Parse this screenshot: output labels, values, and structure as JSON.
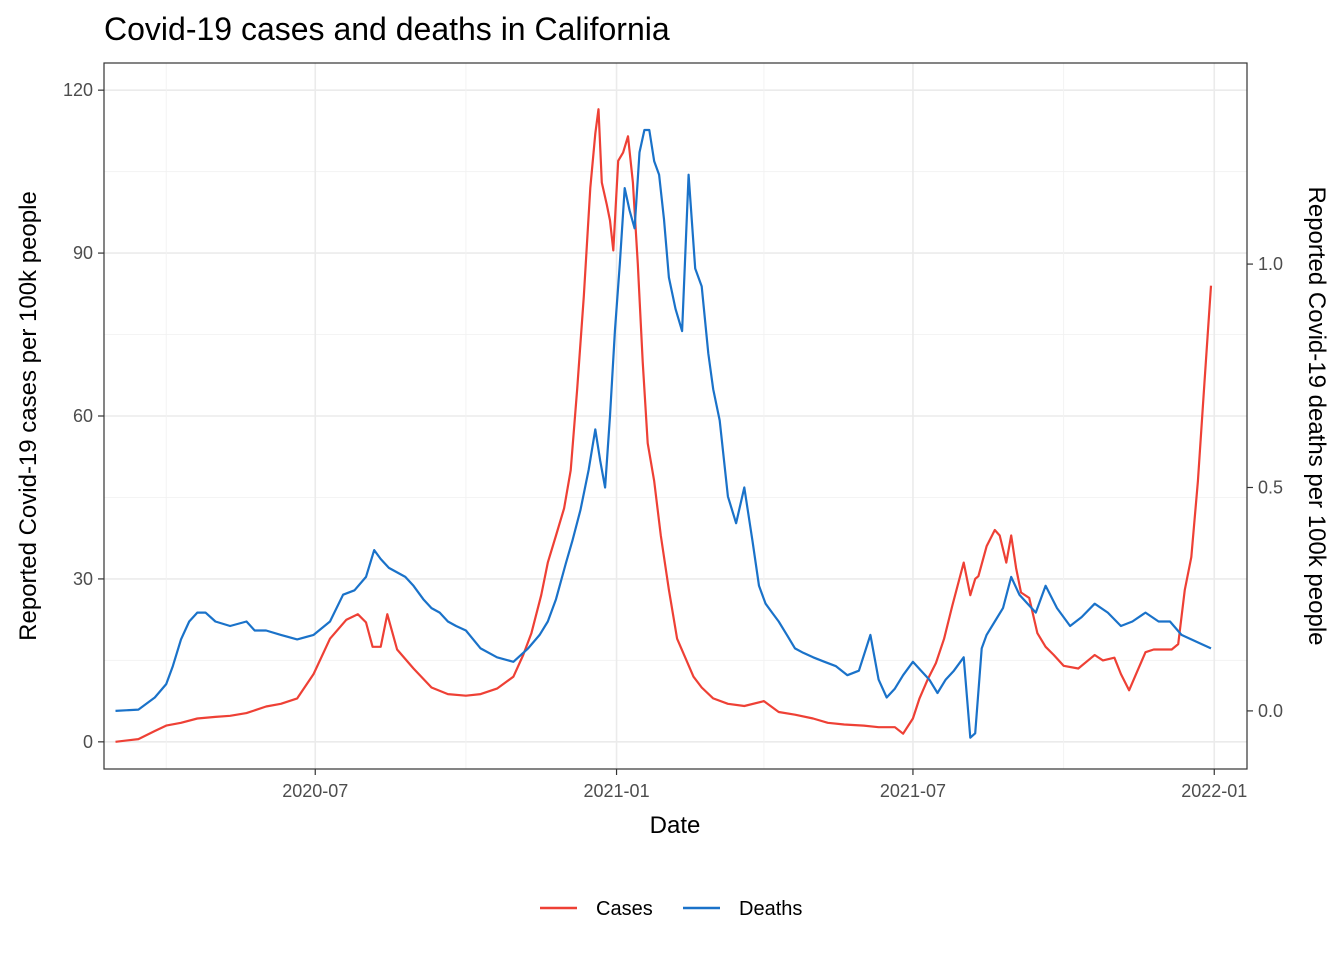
{
  "chart_data": {
    "type": "line",
    "title": "Covid-19 cases and deaths in California",
    "xlabel": "Date",
    "ylabel": "Reported Covid-19 cases per 100k people",
    "y2label": "Reported Covid-19 deaths per 100k people",
    "x_ticks": [
      "2020-07",
      "2021-01",
      "2021-07",
      "2022-01"
    ],
    "y_ticks": [
      0,
      30,
      60,
      90,
      120
    ],
    "y2_ticks": [
      "0.0",
      "0.5",
      "1.0"
    ],
    "xlim": [
      "2020-02-23",
      "2022-01-21"
    ],
    "ylim": [
      -5,
      125
    ],
    "y2lim": [
      -0.13,
      1.45
    ],
    "grid": true,
    "legend_position": "bottom",
    "series": [
      {
        "name": "Cases",
        "axis": "left",
        "color": "#ee4035",
        "x": [
          "2020-03-01",
          "2020-03-15",
          "2020-03-25",
          "2020-04-01",
          "2020-04-10",
          "2020-04-20",
          "2020-05-01",
          "2020-05-10",
          "2020-05-20",
          "2020-06-01",
          "2020-06-10",
          "2020-06-20",
          "2020-06-30",
          "2020-07-10",
          "2020-07-20",
          "2020-07-27",
          "2020-08-01",
          "2020-08-05",
          "2020-08-10",
          "2020-08-14",
          "2020-08-20",
          "2020-08-30",
          "2020-09-10",
          "2020-09-20",
          "2020-10-01",
          "2020-10-10",
          "2020-10-20",
          "2020-10-30",
          "2020-11-05",
          "2020-11-10",
          "2020-11-16",
          "2020-11-20",
          "2020-11-25",
          "2020-11-30",
          "2020-12-04",
          "2020-12-08",
          "2020-12-12",
          "2020-12-16",
          "2020-12-19",
          "2020-12-21",
          "2020-12-23",
          "2020-12-26",
          "2020-12-28",
          "2020-12-30",
          "2021-01-02",
          "2021-01-05",
          "2021-01-08",
          "2021-01-11",
          "2021-01-14",
          "2021-01-17",
          "2021-01-20",
          "2021-01-24",
          "2021-01-28",
          "2021-02-02",
          "2021-02-07",
          "2021-02-12",
          "2021-02-17",
          "2021-02-22",
          "2021-03-01",
          "2021-03-10",
          "2021-03-20",
          "2021-04-01",
          "2021-04-10",
          "2021-04-20",
          "2021-05-01",
          "2021-05-10",
          "2021-05-20",
          "2021-06-01",
          "2021-06-10",
          "2021-06-20",
          "2021-06-25",
          "2021-07-01",
          "2021-07-05",
          "2021-07-10",
          "2021-07-15",
          "2021-07-20",
          "2021-07-25",
          "2021-08-01",
          "2021-08-05",
          "2021-08-08",
          "2021-08-10",
          "2021-08-15",
          "2021-08-20",
          "2021-08-23",
          "2021-08-27",
          "2021-08-30",
          "2021-09-02",
          "2021-09-05",
          "2021-09-10",
          "2021-09-15",
          "2021-09-20",
          "2021-09-25",
          "2021-10-01",
          "2021-10-10",
          "2021-10-18",
          "2021-10-20",
          "2021-10-25",
          "2021-11-01",
          "2021-11-05",
          "2021-11-10",
          "2021-11-15",
          "2021-11-20",
          "2021-11-25",
          "2021-12-01",
          "2021-12-06",
          "2021-12-10",
          "2021-12-14",
          "2021-12-18",
          "2021-12-22",
          "2021-12-26",
          "2021-12-30"
        ],
        "values": [
          0,
          0.5,
          2,
          3,
          3.5,
          4.3,
          4.6,
          4.8,
          5.3,
          6.5,
          7,
          8,
          12.5,
          19,
          22.5,
          23.5,
          22,
          17.5,
          17.5,
          23.5,
          17,
          13.5,
          10,
          8.8,
          8.5,
          8.8,
          9.8,
          12,
          16,
          20,
          27,
          33,
          38,
          43,
          50,
          65,
          82,
          102,
          112,
          116.5,
          103,
          99,
          96,
          90.5,
          107,
          108.5,
          111.5,
          103,
          88,
          70,
          55,
          48,
          38,
          28,
          19,
          15.5,
          12,
          10,
          8,
          7,
          6.6,
          7.5,
          5.5,
          5,
          4.3,
          3.5,
          3.2,
          3,
          2.7,
          2.7,
          1.5,
          4.3,
          8,
          11.5,
          14.5,
          19,
          25,
          33,
          27,
          30,
          30.5,
          36,
          39,
          38,
          33,
          38,
          32,
          27.5,
          26.5,
          20,
          17.5,
          16,
          14,
          13.5,
          15.5,
          16,
          15,
          15.5,
          12.5,
          9.5,
          13,
          16.5,
          17,
          17,
          17,
          18,
          28,
          34,
          48,
          66,
          84
        ]
      },
      {
        "name": "Deaths",
        "axis": "right",
        "color": "#1a72c9",
        "x": [
          "2020-03-01",
          "2020-03-15",
          "2020-03-25",
          "2020-04-01",
          "2020-04-05",
          "2020-04-10",
          "2020-04-15",
          "2020-04-20",
          "2020-04-25",
          "2020-05-01",
          "2020-05-10",
          "2020-05-20",
          "2020-05-25",
          "2020-06-01",
          "2020-06-10",
          "2020-06-20",
          "2020-06-30",
          "2020-07-10",
          "2020-07-18",
          "2020-07-25",
          "2020-08-01",
          "2020-08-06",
          "2020-08-10",
          "2020-08-15",
          "2020-08-20",
          "2020-08-25",
          "2020-08-30",
          "2020-09-05",
          "2020-09-10",
          "2020-09-15",
          "2020-09-20",
          "2020-09-25",
          "2020-10-01",
          "2020-10-10",
          "2020-10-20",
          "2020-10-30",
          "2020-11-08",
          "2020-11-15",
          "2020-11-20",
          "2020-11-25",
          "2020-12-01",
          "2020-12-05",
          "2020-12-10",
          "2020-12-15",
          "2020-12-19",
          "2020-12-22",
          "2020-12-25",
          "2020-12-28",
          "2020-12-31",
          "2021-01-03",
          "2021-01-06",
          "2021-01-09",
          "2021-01-12",
          "2021-01-15",
          "2021-01-18",
          "2021-01-21",
          "2021-01-24",
          "2021-01-27",
          "2021-01-30",
          "2021-02-02",
          "2021-02-06",
          "2021-02-10",
          "2021-02-14",
          "2021-02-18",
          "2021-02-22",
          "2021-02-26",
          "2021-03-01",
          "2021-03-05",
          "2021-03-10",
          "2021-03-15",
          "2021-03-20",
          "2021-03-25",
          "2021-03-29",
          "2021-04-02",
          "2021-04-06",
          "2021-04-10",
          "2021-04-15",
          "2021-04-20",
          "2021-04-25",
          "2021-05-01",
          "2021-05-08",
          "2021-05-15",
          "2021-05-22",
          "2021-05-29",
          "2021-06-05",
          "2021-06-10",
          "2021-06-15",
          "2021-06-20",
          "2021-06-25",
          "2021-07-01",
          "2021-07-06",
          "2021-07-11",
          "2021-07-16",
          "2021-07-21",
          "2021-07-26",
          "2021-08-01",
          "2021-08-05",
          "2021-08-08",
          "2021-08-12",
          "2021-08-15",
          "2021-08-20",
          "2021-08-25",
          "2021-08-30",
          "2021-09-04",
          "2021-09-09",
          "2021-09-14",
          "2021-09-20",
          "2021-09-27",
          "2021-10-05",
          "2021-10-12",
          "2021-10-20",
          "2021-10-28",
          "2021-11-05",
          "2021-11-12",
          "2021-11-20",
          "2021-11-28",
          "2021-12-05",
          "2021-12-12",
          "2021-12-18",
          "2021-12-24",
          "2021-12-30"
        ],
        "values": [
          0,
          0.003,
          0.03,
          0.06,
          0.1,
          0.16,
          0.2,
          0.22,
          0.22,
          0.2,
          0.19,
          0.2,
          0.18,
          0.18,
          0.17,
          0.16,
          0.17,
          0.2,
          0.26,
          0.27,
          0.3,
          0.36,
          0.34,
          0.32,
          0.31,
          0.3,
          0.28,
          0.25,
          0.23,
          0.22,
          0.2,
          0.19,
          0.18,
          0.14,
          0.12,
          0.11,
          0.14,
          0.17,
          0.2,
          0.25,
          0.33,
          0.38,
          0.45,
          0.54,
          0.63,
          0.56,
          0.5,
          0.66,
          0.85,
          1.0,
          1.17,
          1.12,
          1.08,
          1.25,
          1.3,
          1.3,
          1.23,
          1.2,
          1.1,
          0.97,
          0.9,
          0.85,
          1.2,
          0.99,
          0.95,
          0.8,
          0.72,
          0.65,
          0.48,
          0.42,
          0.5,
          0.38,
          0.28,
          0.24,
          0.22,
          0.2,
          0.17,
          0.14,
          0.13,
          0.12,
          0.11,
          0.1,
          0.08,
          0.09,
          0.17,
          0.07,
          0.03,
          0.05,
          0.08,
          0.11,
          0.09,
          0.07,
          0.04,
          0.07,
          0.09,
          0.12,
          -0.06,
          -0.05,
          0.14,
          0.17,
          0.2,
          0.23,
          0.3,
          0.26,
          0.24,
          0.22,
          0.28,
          0.23,
          0.19,
          0.21,
          0.24,
          0.22,
          0.19,
          0.2,
          0.22,
          0.2,
          0.2,
          0.17,
          0.16,
          0.15,
          0.14
        ]
      }
    ]
  }
}
